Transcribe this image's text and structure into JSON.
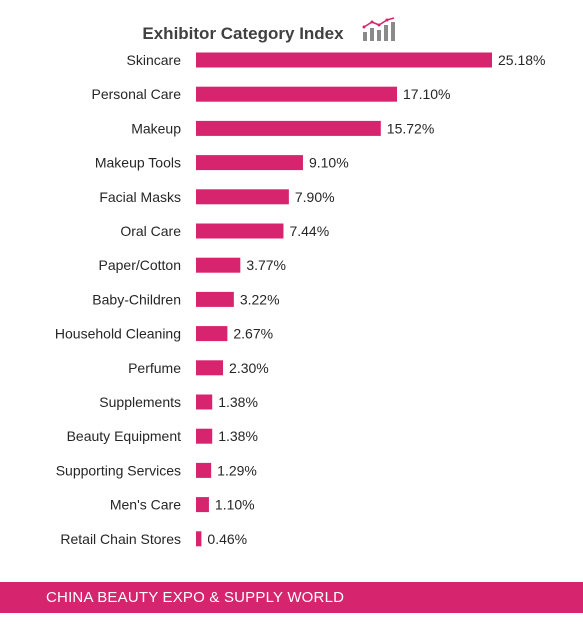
{
  "chart_data": {
    "type": "bar",
    "orientation": "horizontal",
    "title": "Exhibitor Category Index",
    "categories": [
      "Skincare",
      "Personal Care",
      "Makeup",
      "Makeup Tools",
      "Facial Masks",
      "Oral Care",
      "Paper/Cotton",
      "Baby-Children",
      "Household Cleaning",
      "Perfume",
      "Supplements",
      "Beauty Equipment",
      "Supporting Services",
      "Men's Care",
      "Retail Chain Stores"
    ],
    "values": [
      25.18,
      17.1,
      15.72,
      9.1,
      7.9,
      7.44,
      3.77,
      3.22,
      2.67,
      2.3,
      1.38,
      1.38,
      1.29,
      1.1,
      0.46
    ],
    "value_labels": [
      "25.18%",
      "17.10%",
      "15.72%",
      "9.10%",
      "7.90%",
      "7.44%",
      "3.77%",
      "3.22%",
      "2.67%",
      "2.30%",
      "1.38%",
      "1.38%",
      "1.29%",
      "1.10%",
      "0.46%"
    ],
    "xlim": [
      0,
      25.18
    ],
    "grid": false,
    "legend": "none"
  },
  "footer": {
    "text": "CHINA BEAUTY EXPO & SUPPLY  WORLD"
  },
  "colors": {
    "bar": "#d6246e",
    "footer_bg": "#d6246e",
    "footer_text": "#ffffff",
    "label_text": "#262626",
    "title_text": "#404040"
  },
  "title_icon": "bar-chart-icon"
}
